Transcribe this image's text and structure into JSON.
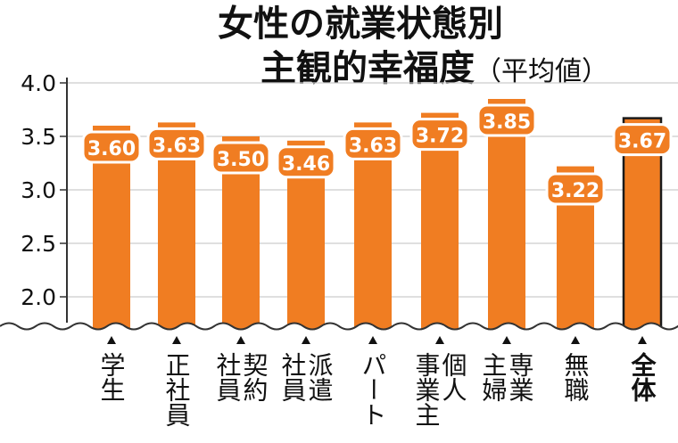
{
  "chart_data": {
    "type": "bar",
    "title_line1": "女性の就業状態別",
    "title_line2": "主観的幸福度",
    "subtitle": "（平均値）",
    "categories": [
      [
        "学生"
      ],
      [
        "正社員"
      ],
      [
        "契約",
        "社員"
      ],
      [
        "派遣",
        "社員"
      ],
      [
        "パート"
      ],
      [
        "個人",
        "事業主"
      ],
      [
        "専業",
        "主婦"
      ],
      [
        "無職"
      ],
      [
        "全体"
      ]
    ],
    "values": [
      3.6,
      3.63,
      3.5,
      3.46,
      3.63,
      3.72,
      3.85,
      3.22,
      3.67
    ],
    "value_labels": [
      "3.60",
      "3.63",
      "3.50",
      "3.46",
      "3.63",
      "3.72",
      "3.85",
      "3.22",
      "3.67"
    ],
    "ylim": [
      1.8,
      4.0
    ],
    "yticks": [
      "4.0",
      "3.5",
      "3.0",
      "2.5",
      "2.0"
    ],
    "ytick_values": [
      4.0,
      3.5,
      3.0,
      2.5,
      2.0
    ],
    "highlight_index": 8,
    "axis_break": true,
    "grid": true,
    "colors": {
      "bar": "#F07D22",
      "highlight_outline": "#1a1a1a",
      "label_bg": "#F07D22",
      "grid": "#cccccc",
      "axis": "#333333",
      "text": "#111111"
    }
  }
}
